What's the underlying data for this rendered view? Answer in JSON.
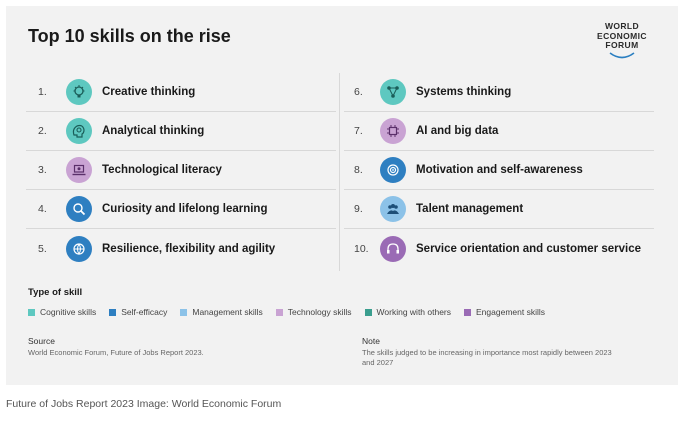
{
  "header": {
    "title": "Top 10 skills on the rise"
  },
  "logo": {
    "line1": "WORLD",
    "line2": "ECONOMIC",
    "line3": "FORUM"
  },
  "skills_left": [
    {
      "num": "1.",
      "label": "Creative thinking",
      "type": "Cognitive skills",
      "icon": "lightbulb-head-icon",
      "color": "#5ec8c0"
    },
    {
      "num": "2.",
      "label": "Analytical thinking",
      "type": "Cognitive skills",
      "icon": "brain-gear-icon",
      "color": "#5ec8c0"
    },
    {
      "num": "3.",
      "label": "Technological literacy",
      "type": "Technology skills",
      "icon": "laptop-icon",
      "color": "#c9a3d3"
    },
    {
      "num": "4.",
      "label": "Curiosity and lifelong learning",
      "type": "Self-efficacy",
      "icon": "magnifier-icon",
      "color": "#2e7fc1"
    },
    {
      "num": "5.",
      "label": "Resilience, flexibility and agility",
      "type": "Self-efficacy",
      "icon": "globe-arrows-icon",
      "color": "#2e7fc1"
    }
  ],
  "skills_right": [
    {
      "num": "6.",
      "label": "Systems thinking",
      "type": "Cognitive skills",
      "icon": "network-icon",
      "color": "#5ec8c0"
    },
    {
      "num": "7.",
      "label": "AI and big data",
      "type": "Technology skills",
      "icon": "chip-icon",
      "color": "#c9a3d3"
    },
    {
      "num": "8.",
      "label": "Motivation and self-awareness",
      "type": "Self-efficacy",
      "icon": "target-icon",
      "color": "#2e7fc1"
    },
    {
      "num": "9.",
      "label": "Talent management",
      "type": "Management skills",
      "icon": "people-icon",
      "color": "#8cc2e8"
    },
    {
      "num": "10.",
      "label": "Service orientation and customer service",
      "type": "Engagement skills",
      "icon": "headset-icon",
      "color": "#9a6bb5"
    }
  ],
  "legend": {
    "title": "Type of skill",
    "items": [
      {
        "label": "Cognitive skills",
        "color": "#5ec8c0"
      },
      {
        "label": "Self-efficacy",
        "color": "#2e7fc1"
      },
      {
        "label": "Management skills",
        "color": "#8cc2e8"
      },
      {
        "label": "Technology skills",
        "color": "#c9a3d3"
      },
      {
        "label": "Working with others",
        "color": "#3a9e8e"
      },
      {
        "label": "Engagement skills",
        "color": "#9a6bb5"
      }
    ]
  },
  "source": {
    "title": "Source",
    "text": "World Economic Forum, Future of Jobs Report 2023."
  },
  "note": {
    "title": "Note",
    "text": "The skills judged to be increasing in importance most rapidly between 2023 and 2027"
  },
  "caption": "Future of Jobs Report 2023 Image: World Economic Forum"
}
